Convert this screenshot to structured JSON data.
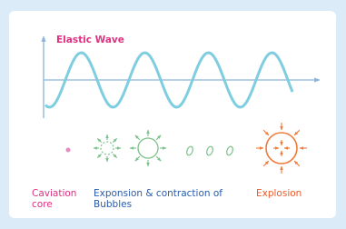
{
  "title": "Elastic Wave",
  "labels": [
    {
      "lines": [
        "Caviation",
        "core"
      ]
    },
    {
      "lines": [
        "Exponsion & contraction of",
        "Bubbles"
      ]
    },
    {
      "lines": [
        "Explosion"
      ]
    }
  ]
}
